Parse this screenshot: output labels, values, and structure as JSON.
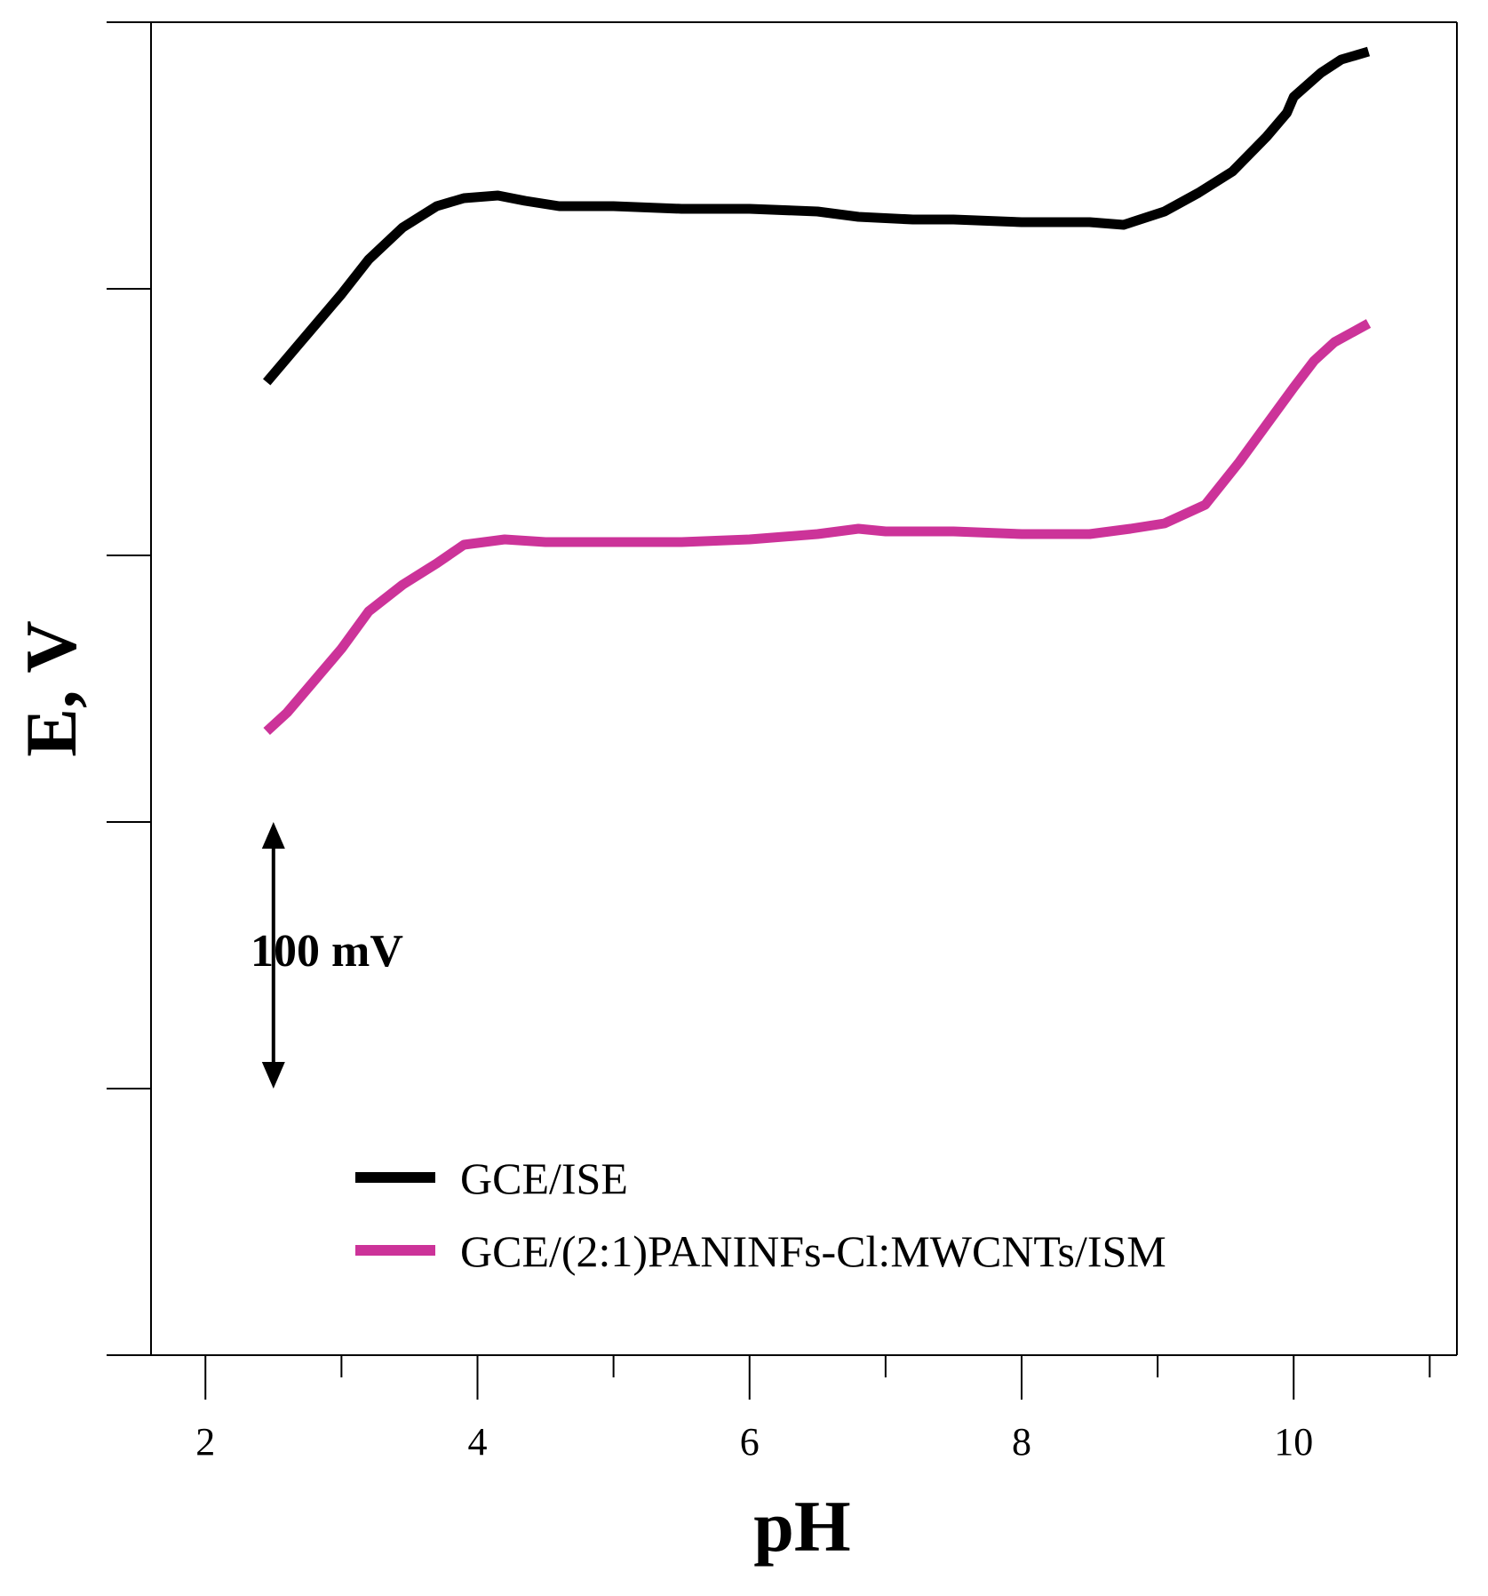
{
  "chart_data": {
    "type": "line",
    "title": "",
    "xlabel": "pH",
    "ylabel": "E, V",
    "xlim": [
      1.6,
      11.2
    ],
    "ylim": [
      -500,
      0
    ],
    "x_ticks": [
      2,
      4,
      6,
      8,
      10
    ],
    "x_tick_labels": [
      "2",
      "4",
      "6",
      "8",
      "10"
    ],
    "x_minor_ticks": [
      3,
      5,
      7,
      9,
      11
    ],
    "y_ticks": [
      -500,
      -400,
      -300,
      -200,
      -100,
      0
    ],
    "y_tick_labels_shown": false,
    "grid": false,
    "legend_position": "bottom-left",
    "scale_bar": {
      "label": "100 mV",
      "value_mV": 100,
      "x": 2.5,
      "y_from": -300,
      "y_to": -400
    },
    "series": [
      {
        "name": "GCE/ISE",
        "color": "#000000",
        "x": [
          2.45,
          2.7,
          3.0,
          3.2,
          3.45,
          3.7,
          3.9,
          4.15,
          4.35,
          4.6,
          5.0,
          5.5,
          6.0,
          6.5,
          6.8,
          7.2,
          7.5,
          8.0,
          8.5,
          8.75,
          9.05,
          9.3,
          9.55,
          9.8,
          9.95,
          10.0,
          10.2,
          10.35,
          10.55
        ],
        "y": [
          -135,
          -120,
          -102,
          -89,
          -77,
          -69,
          -66,
          -65,
          -67,
          -69,
          -69,
          -70,
          -70,
          -71,
          -73,
          -74,
          -74,
          -75,
          -75,
          -76,
          -71,
          -64,
          -56,
          -43,
          -34,
          -28,
          -19,
          -14,
          -11
        ]
      },
      {
        "name": "GCE/(2:1)PANINFs-Cl:MWCNTs/ISM",
        "color": "#CC3399",
        "x": [
          2.45,
          2.6,
          2.8,
          3.0,
          3.2,
          3.45,
          3.7,
          3.9,
          4.2,
          4.5,
          5.0,
          5.5,
          6.0,
          6.5,
          6.8,
          7.0,
          7.5,
          8.0,
          8.5,
          8.8,
          9.05,
          9.35,
          9.6,
          9.8,
          10.0,
          10.15,
          10.3,
          10.55
        ],
        "y": [
          -266,
          -259,
          -247,
          -235,
          -221,
          -211,
          -203,
          -196,
          -194,
          -195,
          -195,
          -195,
          -194,
          -192,
          -190,
          -191,
          -191,
          -192,
          -192,
          -190,
          -188,
          -181,
          -165,
          -151,
          -137,
          -127,
          -120,
          -113
        ]
      }
    ]
  }
}
